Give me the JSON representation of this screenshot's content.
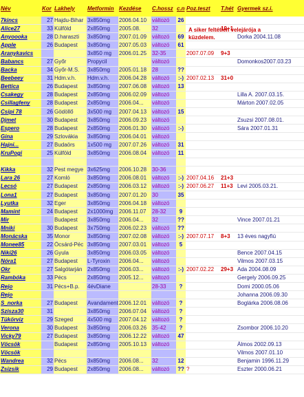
{
  "headers": [
    "Név",
    "Kor",
    "Lakhely",
    "Metformin",
    "Kezdése",
    "C.hossz",
    "c.n",
    "Poz.teszt",
    "T.hét",
    "Gyermek sz.i."
  ],
  "warning": "A siker feltétlen velejárója a küzdelem.",
  "rows": [
    {
      "name": "7kincs",
      "kor": "27",
      "lak": "Hajdu-Bihar",
      "met": "3x850mg",
      "kez": "2006.04.10",
      "chos": "változó",
      "cn": "26",
      "poz": "",
      "th": "",
      "gyer": ""
    },
    {
      "name": "Alice27",
      "kor": "33",
      "lak": "Külföld",
      "met": "2x850mg",
      "kez": "2005.08.",
      "chos": "32",
      "cn": "",
      "poz": "",
      "th": "19+1",
      "gyer": ""
    },
    {
      "name": "Anyoooka",
      "kor": "28",
      "lak": "D.haraszti",
      "met": "3x850mg",
      "kez": "2007.01.09",
      "chos": "változó",
      "cn": "69",
      "poz": "",
      "th": "",
      "gyer": "Dorka 2004.11.08"
    },
    {
      "name": "Apple",
      "kor": "26",
      "lak": "Budapest",
      "met": "3x850mg",
      "kez": "2007.05.03",
      "chos": "változó",
      "cn": "61",
      "poz": "",
      "th": "",
      "gyer": ""
    },
    {
      "name": "Aranykavics",
      "kor": "",
      "lak": "",
      "met": "3x850 mg",
      "kez": "2006.01.25",
      "chos": "32-35",
      "cn": "",
      "poz": "2007.07.09",
      "th": "9+3",
      "gyer": ""
    },
    {
      "name": "Babancs",
      "kor": "27",
      "lak": "Győr",
      "met": "Propycil",
      "kez": "",
      "chos": "változó",
      "cn": "",
      "poz": "",
      "th": "",
      "gyer": "Domonkos2007.03.23"
    },
    {
      "name": "Backa",
      "kor": "34",
      "lak": "Győr-M.S.",
      "met": "3x850mg",
      "kez": "2005.01.18",
      "chos": "28",
      "cn": "??",
      "poz": "",
      "th": "",
      "gyer": ""
    },
    {
      "name": "Beebeey",
      "kor": "31",
      "lak": "Hdm.v.h.",
      "met": "Hdm.v.h.",
      "kez": "2006.04.28",
      "chos": "változó",
      "cn": ":-)",
      "poz": "2007.02.13",
      "th": "31+0",
      "gyer": ""
    },
    {
      "name": "Bettica",
      "kor": "26",
      "lak": "Budapest",
      "met": "3x850mg",
      "kez": "2007.06.08",
      "chos": "változó",
      "cn": "13",
      "poz": "",
      "th": "",
      "gyer": ""
    },
    {
      "name": "Csakegy",
      "kor": "28",
      "lak": "Budapest",
      "met": "2x850mg",
      "kez": "2006.02.09",
      "chos": "változó",
      "cn": "",
      "poz": "",
      "th": "",
      "gyer": "Lilla A. 2007.03.15."
    },
    {
      "name": "Csillagfeny",
      "kor": "28",
      "lak": "Budapest",
      "met": "2x850mg",
      "kez": "2006.04...",
      "chos": "változó",
      "cn": "",
      "poz": "",
      "th": "",
      "gyer": "Márton 2007.02.05"
    },
    {
      "name": "Csipi 78",
      "kor": "26",
      "lak": "Gödöllő",
      "met": "3x500 mg",
      "kez": "2007.04.13",
      "chos": "változó",
      "cn": "15",
      "poz": "",
      "th": "",
      "gyer": ""
    },
    {
      "name": "Djmet",
      "kor": "30",
      "lak": "Budapest",
      "met": "3x850mg",
      "kez": "2006.09.23",
      "chos": "változó",
      "cn": "",
      "poz": "",
      "th": "",
      "gyer": "Zsuzsi 2007.08.01."
    },
    {
      "name": "Espero",
      "kor": "28",
      "lak": "Budapest",
      "met": "2x850mg",
      "kez": "2006.01.30",
      "chos": "változó",
      "cn": ":-)",
      "poz": "",
      "th": "",
      "gyer": "Sára 2007.01.31"
    },
    {
      "name": "Gina",
      "kor": "29",
      "lak": "Szlovákia",
      "met": "3x850mg",
      "kez": "2006.04.01",
      "chos": "változó",
      "cn": "",
      "poz": "",
      "th": "",
      "gyer": ""
    },
    {
      "name": "Hajni...",
      "kor": "27",
      "lak": "Budaörs",
      "met": "1x500 mg",
      "kez": "2007.07.26",
      "chos": "változó",
      "cn": "31",
      "poz": "",
      "th": "",
      "gyer": ""
    },
    {
      "name": "KruPogi",
      "kor": "25",
      "lak": "Külföld",
      "met": "3x850mg",
      "kez": "2006.08.04",
      "chos": "változó",
      "cn": "11",
      "poz": "",
      "th": "",
      "gyer": ""
    },
    {
      "name": "",
      "kor": "",
      "lak": "",
      "met": "",
      "kez": "",
      "chos": "",
      "cn": "",
      "poz": "",
      "th": "",
      "gyer": ""
    },
    {
      "name": "Kikka",
      "kor": "32",
      "lak": "Pest megye",
      "met": "3x625mg",
      "kez": "2006.10.28",
      "chos": "30-36",
      "cn": "",
      "poz": "",
      "th": "",
      "gyer": ""
    },
    {
      "name": "Lara 26",
      "kor": "27",
      "lak": "Komló",
      "met": "3x850mg",
      "kez": "2006.08.01",
      "chos": "változó",
      "cn": ":-)",
      "poz": "2007.04.16",
      "th": "21+3",
      "gyer": ""
    },
    {
      "name": "Lecsó",
      "kor": "27",
      "lak": "Budapest",
      "met": "2x850mg",
      "kez": "2006.03.12",
      "chos": "változó",
      "cn": ":-)",
      "poz": "2007.06.27",
      "th": "11+3",
      "gyer": "Levi 2005.03.21."
    },
    {
      "name": "Lona1",
      "kor": "27",
      "lak": "Budapest",
      "met": "3x850mg",
      "kez": "2007.01.20",
      "chos": "30",
      "cn": "35",
      "poz": "",
      "th": "",
      "gyer": ""
    },
    {
      "name": "Lyutka",
      "kor": "32",
      "lak": "Eger",
      "met": "3x850mg",
      "kez": "2006.04.18",
      "chos": "változó",
      "cn": "",
      "poz": "",
      "th": "",
      "gyer": ""
    },
    {
      "name": "Mamint",
      "kor": "24",
      "lak": "Budapest",
      "met": "2x1000mg",
      "kez": "2006.11.07",
      "chos": "28-32",
      "cn": "9",
      "poz": "",
      "th": "",
      "gyer": ""
    },
    {
      "name": "Mir",
      "kor": "",
      "lak": "Budapest",
      "met": "3x850mg",
      "kez": "2006.04...",
      "chos": "32",
      "cn": "??",
      "poz": "",
      "th": "",
      "gyer": "Vince 2007.01.21"
    },
    {
      "name": "Mniki",
      "kor": "30",
      "lak": "Budapest",
      "met": "3x750mg",
      "kez": "2006.02.23",
      "chos": "változó",
      "cn": "??",
      "poz": "",
      "th": "",
      "gyer": ""
    },
    {
      "name": "Monácska",
      "kor": "35",
      "lak": "Monor",
      "met": "3x850mg",
      "kez": "2007.02.08",
      "chos": "változó",
      "cn": ":-)",
      "poz": "2007.07.17",
      "th": "8+3",
      "gyer": "13 éves nagyfiú"
    },
    {
      "name": "Monee85",
      "kor": "22",
      "lak": "Őcsárd-Péc",
      "met": "3x850mg",
      "kez": "2007.03.01",
      "chos": "változó",
      "cn": "5",
      "poz": "",
      "th": "",
      "gyer": ""
    },
    {
      "name": "Niki26",
      "kor": "26",
      "lak": "Gyula",
      "met": "3x850mg",
      "kez": "2006.03.05",
      "chos": "változó",
      "cn": "",
      "poz": "",
      "th": "",
      "gyer": "Bence 2007.04.15"
    },
    {
      "name": "Nóra1",
      "kor": "27",
      "lak": "Budapest",
      "met": "L-Tyroxin",
      "kez": "2006.04...",
      "chos": "változó",
      "cn": "",
      "poz": "",
      "th": "",
      "gyer": "Vilmos 2007.03.15"
    },
    {
      "name": "Okr",
      "kor": "27",
      "lak": "Salgótarján",
      "met": "2x850mg",
      "kez": "2006.03...",
      "chos": "változó",
      "cn": ":-)",
      "poz": "2007.02.22",
      "th": "29+3",
      "gyer": "Ada 2004.08.09"
    },
    {
      "name": "Rambóka",
      "kor": "33",
      "lak": "Pécs",
      "met": "2x850mg",
      "kez": "2005.12...",
      "chos": "változó",
      "cn": "",
      "poz": "",
      "th": "",
      "gyer": "Gergely 2006.09.25"
    },
    {
      "name": "Rejo",
      "kor": "31",
      "lak": "Pécs+B.p.",
      "met": "4évDiane",
      "kez": "",
      "chos": "28-33",
      "cn": "?",
      "poz": "",
      "th": "",
      "gyer": "Domi 2000.05.06"
    },
    {
      "name": "Rejo",
      "kor": "",
      "lak": "",
      "met": "",
      "kez": "",
      "chos": "",
      "cn": "",
      "poz": "",
      "th": "",
      "gyer": "Johanna 2006.09.30"
    },
    {
      "name": "S_norka",
      "kor": "27",
      "lak": "Budapest",
      "met": "Avandament 2000 mg",
      "kez": "2006.12.01",
      "chos": "változó",
      "cn": "?",
      "poz": "",
      "th": "",
      "gyer": "Boglárka 2006.08.06"
    },
    {
      "name": "Szisza30",
      "kor": "31",
      "lak": "",
      "met": "3x850mg",
      "kez": "2006.07.04",
      "chos": "változó",
      "cn": "?",
      "poz": "",
      "th": "",
      "gyer": ""
    },
    {
      "name": "Tükörviz",
      "kor": "29",
      "lak": "Szeged",
      "met": "4x500 mg",
      "kez": "2007.04.12",
      "chos": "változó",
      "cn": "?",
      "poz": "",
      "th": "",
      "gyer": ""
    },
    {
      "name": "Verona",
      "kor": "30",
      "lak": "Budapest",
      "met": "3x850mg",
      "kez": "2006.03.26",
      "chos": "35-42",
      "cn": "?",
      "poz": "",
      "th": "",
      "gyer": "Zsombor 2006.10.20"
    },
    {
      "name": "Vicky79",
      "kor": "27",
      "lak": "Budapest",
      "met": "3x850mg",
      "kez": "2006.12.22",
      "chos": "változó",
      "cn": "47",
      "poz": "",
      "th": "",
      "gyer": ""
    },
    {
      "name": "Vöcsök",
      "kor": "",
      "lak": "Budapest",
      "met": "2x850mg",
      "kez": "2005.10.13",
      "chos": "változó",
      "cn": "",
      "poz": "",
      "th": "",
      "gyer": "Álmos 2002.09.13"
    },
    {
      "name": "Vöcsök",
      "kor": "",
      "lak": "",
      "met": "",
      "kez": "",
      "chos": "",
      "cn": "",
      "poz": "",
      "th": "",
      "gyer": "Vilmos 2007.01.10"
    },
    {
      "name": "Wandrea",
      "kor": "32",
      "lak": "Pécs",
      "met": "3x850mg",
      "kez": "2006.08...",
      "chos": "32",
      "cn": "12",
      "poz": "",
      "th": "",
      "gyer": "Benjamin 1996.11.29"
    },
    {
      "name": "Zsizsik",
      "kor": "29",
      "lak": "Budapest",
      "met": "2x850mg",
      "kez": "2006.08...",
      "chos": "változó",
      "cn": "??",
      "poz": "?",
      "th": "",
      "gyer": "Eszter 2000.06.21"
    }
  ]
}
